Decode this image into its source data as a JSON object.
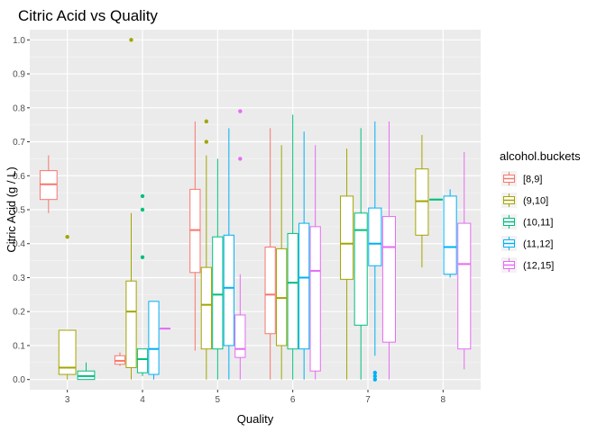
{
  "chart_data": {
    "type": "boxplot",
    "title": "Citric Acid vs Quality",
    "xlabel": "Quality",
    "ylabel": "Citric Acid (g / L)",
    "x_categories": [
      "3",
      "4",
      "5",
      "6",
      "7",
      "8"
    ],
    "ylim": [
      -0.03,
      1.03
    ],
    "y_ticks": [
      0.0,
      0.1,
      0.2,
      0.3,
      0.4,
      0.5,
      0.6,
      0.7,
      0.8,
      0.9,
      1.0
    ],
    "y_tick_labels": [
      "0.0",
      "0.1",
      "0.2",
      "0.3",
      "0.4",
      "0.5",
      "0.6",
      "0.7",
      "0.8",
      "0.9",
      "1.0"
    ],
    "grid": true,
    "legend": {
      "title": "alcohol.buckets",
      "position": "right"
    },
    "series": [
      {
        "name": "[8,9]",
        "color": "#F8766D"
      },
      {
        "name": "(9,10]",
        "color": "#A3A500"
      },
      {
        "name": "(10,11]",
        "color": "#00BF7D"
      },
      {
        "name": "(11,12]",
        "color": "#00B0F6"
      },
      {
        "name": "(12,15]",
        "color": "#E76BF3"
      }
    ],
    "boxes": [
      {
        "quality": "3",
        "series": 0,
        "n_groups": 3,
        "group": 0,
        "whisker_low": 0.49,
        "q1": 0.53,
        "median": 0.575,
        "q3": 0.615,
        "whisker_high": 0.66,
        "outliers": []
      },
      {
        "quality": "3",
        "series": 1,
        "n_groups": 3,
        "group": 1,
        "whisker_low": 0.0,
        "q1": 0.015,
        "median": 0.035,
        "q3": 0.145,
        "whisker_high": 0.145,
        "outliers": [
          0.42
        ]
      },
      {
        "quality": "3",
        "series": 2,
        "n_groups": 3,
        "group": 2,
        "whisker_low": 0.0,
        "q1": 0.0,
        "median": 0.01,
        "q3": 0.025,
        "whisker_high": 0.05,
        "outliers": []
      },
      {
        "quality": "4",
        "series": 0,
        "n_groups": 5,
        "group": 0,
        "whisker_low": 0.04,
        "q1": 0.045,
        "median": 0.055,
        "q3": 0.07,
        "whisker_high": 0.08,
        "outliers": []
      },
      {
        "quality": "4",
        "series": 1,
        "n_groups": 5,
        "group": 1,
        "whisker_low": 0.0,
        "q1": 0.035,
        "median": 0.2,
        "q3": 0.29,
        "whisker_high": 0.49,
        "outliers": [
          1.0
        ]
      },
      {
        "quality": "4",
        "series": 2,
        "n_groups": 5,
        "group": 2,
        "whisker_low": 0.01,
        "q1": 0.02,
        "median": 0.06,
        "q3": 0.09,
        "whisker_high": 0.09,
        "outliers": [
          0.36,
          0.5,
          0.54
        ]
      },
      {
        "quality": "4",
        "series": 3,
        "n_groups": 5,
        "group": 3,
        "whisker_low": 0.0,
        "q1": 0.015,
        "median": 0.09,
        "q3": 0.23,
        "whisker_high": 0.23,
        "outliers": []
      },
      {
        "quality": "4",
        "series": 4,
        "n_groups": 5,
        "group": 4,
        "whisker_low": 0.15,
        "q1": 0.15,
        "median": 0.15,
        "q3": 0.15,
        "whisker_high": 0.15,
        "outliers": []
      },
      {
        "quality": "5",
        "series": 0,
        "n_groups": 5,
        "group": 0,
        "whisker_low": 0.085,
        "q1": 0.315,
        "median": 0.44,
        "q3": 0.56,
        "whisker_high": 0.76,
        "outliers": []
      },
      {
        "quality": "5",
        "series": 1,
        "n_groups": 5,
        "group": 1,
        "whisker_low": 0.0,
        "q1": 0.09,
        "median": 0.22,
        "q3": 0.33,
        "whisker_high": 0.66,
        "outliers": [
          0.7,
          0.76
        ]
      },
      {
        "quality": "5",
        "series": 2,
        "n_groups": 5,
        "group": 2,
        "whisker_low": 0.0,
        "q1": 0.09,
        "median": 0.25,
        "q3": 0.42,
        "whisker_high": 0.65,
        "outliers": []
      },
      {
        "quality": "5",
        "series": 3,
        "n_groups": 5,
        "group": 3,
        "whisker_low": 0.0,
        "q1": 0.1,
        "median": 0.27,
        "q3": 0.425,
        "whisker_high": 0.74,
        "outliers": []
      },
      {
        "quality": "5",
        "series": 4,
        "n_groups": 5,
        "group": 4,
        "whisker_low": 0.0,
        "q1": 0.065,
        "median": 0.09,
        "q3": 0.19,
        "whisker_high": 0.31,
        "outliers": [
          0.65,
          0.79
        ]
      },
      {
        "quality": "6",
        "series": 0,
        "n_groups": 5,
        "group": 0,
        "whisker_low": 0.0,
        "q1": 0.135,
        "median": 0.25,
        "q3": 0.39,
        "whisker_high": 0.74,
        "outliers": []
      },
      {
        "quality": "6",
        "series": 1,
        "n_groups": 5,
        "group": 1,
        "whisker_low": 0.0,
        "q1": 0.1,
        "median": 0.24,
        "q3": 0.385,
        "whisker_high": 0.69,
        "outliers": []
      },
      {
        "quality": "6",
        "series": 2,
        "n_groups": 5,
        "group": 2,
        "whisker_low": 0.0,
        "q1": 0.09,
        "median": 0.285,
        "q3": 0.43,
        "whisker_high": 0.78,
        "outliers": []
      },
      {
        "quality": "6",
        "series": 3,
        "n_groups": 5,
        "group": 3,
        "whisker_low": 0.0,
        "q1": 0.09,
        "median": 0.3,
        "q3": 0.46,
        "whisker_high": 0.73,
        "outliers": []
      },
      {
        "quality": "6",
        "series": 4,
        "n_groups": 5,
        "group": 4,
        "whisker_low": 0.0,
        "q1": 0.025,
        "median": 0.32,
        "q3": 0.45,
        "whisker_high": 0.69,
        "outliers": []
      },
      {
        "quality": "7",
        "series": 1,
        "n_groups": 4,
        "group": 0,
        "whisker_low": 0.0,
        "q1": 0.295,
        "median": 0.4,
        "q3": 0.54,
        "whisker_high": 0.68,
        "outliers": []
      },
      {
        "quality": "7",
        "series": 2,
        "n_groups": 4,
        "group": 1,
        "whisker_low": 0.0,
        "q1": 0.16,
        "median": 0.44,
        "q3": 0.49,
        "whisker_high": 0.74,
        "outliers": []
      },
      {
        "quality": "7",
        "series": 3,
        "n_groups": 4,
        "group": 2,
        "whisker_low": 0.07,
        "q1": 0.335,
        "median": 0.4,
        "q3": 0.505,
        "whisker_high": 0.76,
        "outliers": [
          0.0,
          0.01,
          0.02
        ]
      },
      {
        "quality": "7",
        "series": 4,
        "n_groups": 4,
        "group": 3,
        "whisker_low": 0.0,
        "q1": 0.11,
        "median": 0.39,
        "q3": 0.48,
        "whisker_high": 0.76,
        "outliers": []
      },
      {
        "quality": "8",
        "series": 1,
        "n_groups": 4,
        "group": 0,
        "whisker_low": 0.33,
        "q1": 0.425,
        "median": 0.525,
        "q3": 0.62,
        "whisker_high": 0.72,
        "outliers": []
      },
      {
        "quality": "8",
        "series": 2,
        "n_groups": 4,
        "group": 1,
        "whisker_low": 0.53,
        "q1": 0.53,
        "median": 0.53,
        "q3": 0.53,
        "whisker_high": 0.53,
        "outliers": []
      },
      {
        "quality": "8",
        "series": 3,
        "n_groups": 4,
        "group": 2,
        "whisker_low": 0.3,
        "q1": 0.31,
        "median": 0.39,
        "q3": 0.54,
        "whisker_high": 0.56,
        "outliers": []
      },
      {
        "quality": "8",
        "series": 4,
        "n_groups": 4,
        "group": 3,
        "whisker_low": 0.03,
        "q1": 0.09,
        "median": 0.34,
        "q3": 0.46,
        "whisker_high": 0.67,
        "outliers": []
      }
    ]
  }
}
